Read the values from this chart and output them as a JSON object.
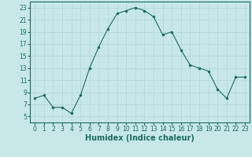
{
  "x": [
    0,
    1,
    2,
    3,
    4,
    5,
    6,
    7,
    8,
    9,
    10,
    11,
    12,
    13,
    14,
    15,
    16,
    17,
    18,
    19,
    20,
    21,
    22,
    23
  ],
  "y": [
    8,
    8.5,
    6.5,
    6.5,
    5.5,
    8.5,
    13,
    16.5,
    19.5,
    22,
    22.5,
    23,
    22.5,
    21.5,
    18.5,
    19,
    16,
    13.5,
    13,
    12.5,
    9.5,
    8,
    11.5,
    11.5
  ],
  "line_color": "#1a6b5a",
  "marker_color": "#1a6b5a",
  "bg_color": "#c8e8e8",
  "grid_color": "#b0d4d4",
  "xlabel": "Humidex (Indice chaleur)",
  "xlim": [
    -0.5,
    23.5
  ],
  "ylim": [
    4,
    24
  ],
  "yticks": [
    5,
    7,
    9,
    11,
    13,
    15,
    17,
    19,
    21,
    23
  ],
  "xticks": [
    0,
    1,
    2,
    3,
    4,
    5,
    6,
    7,
    8,
    9,
    10,
    11,
    12,
    13,
    14,
    15,
    16,
    17,
    18,
    19,
    20,
    21,
    22,
    23
  ],
  "tick_fontsize": 5.5,
  "label_fontsize": 7,
  "label_fontweight": "bold"
}
